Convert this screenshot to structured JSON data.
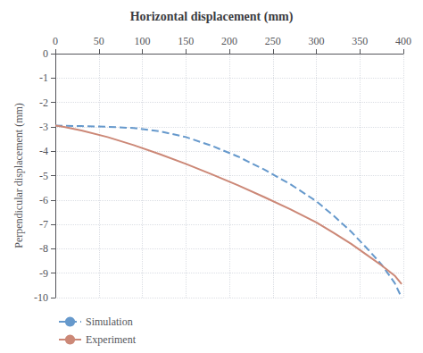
{
  "chart_data": {
    "type": "line",
    "title": "Horizontal displacement (mm)",
    "ylabel": "Perpendicular displacement (mm)",
    "xlim": [
      0,
      400
    ],
    "ylim": [
      -10,
      0
    ],
    "xticks": [
      0,
      50,
      100,
      150,
      200,
      250,
      300,
      350,
      400
    ],
    "yticks": [
      0,
      -1,
      -2,
      -3,
      -4,
      -5,
      -6,
      -7,
      -8,
      -9,
      -10
    ],
    "grid": true,
    "legend": "lower left",
    "x": [
      0,
      10,
      30,
      60,
      90,
      120,
      150,
      180,
      210,
      240,
      270,
      300,
      320,
      340,
      360,
      375,
      390,
      398
    ],
    "series": [
      {
        "name": "Simulation",
        "color": "#6699cc",
        "line_style": "dashed",
        "values": [
          -2.95,
          -2.96,
          -2.97,
          -3.0,
          -3.05,
          -3.18,
          -3.42,
          -3.78,
          -4.22,
          -4.75,
          -5.35,
          -6.05,
          -6.65,
          -7.3,
          -8.05,
          -8.65,
          -9.4,
          -10.0
        ]
      },
      {
        "name": "Experiment",
        "color": "#cc8877",
        "line_style": "solid",
        "values": [
          -2.95,
          -3.0,
          -3.15,
          -3.42,
          -3.75,
          -4.12,
          -4.52,
          -4.95,
          -5.4,
          -5.88,
          -6.38,
          -6.92,
          -7.35,
          -7.8,
          -8.3,
          -8.68,
          -9.1,
          -9.45
        ]
      }
    ]
  }
}
